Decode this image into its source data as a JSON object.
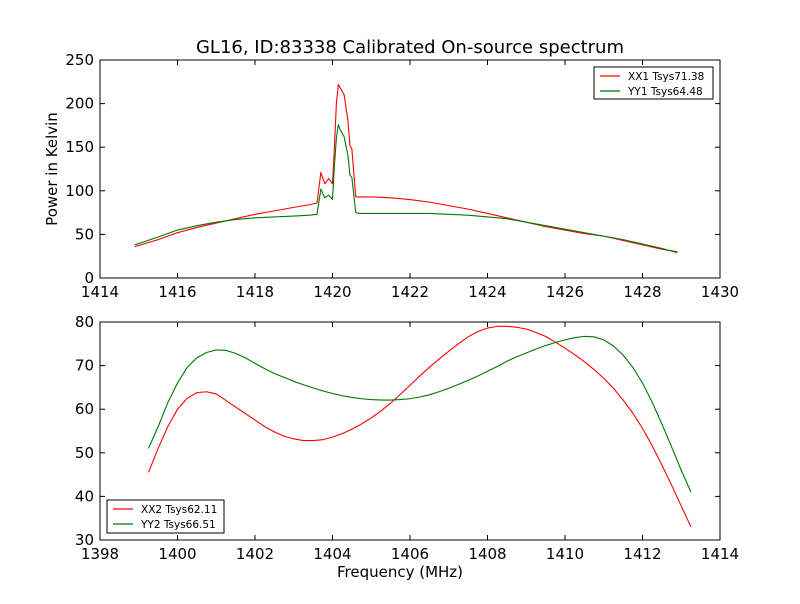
{
  "title": "GL16, ID:83338 Calibrated On-source spectrum",
  "colors": {
    "xx": "#ff0000",
    "yy": "#007700"
  },
  "chart_data": [
    {
      "type": "line",
      "ylabel": "Power in Kelvin",
      "xlabel": "",
      "xlim": [
        1414,
        1430
      ],
      "ylim": [
        0,
        250
      ],
      "xticks": [
        1414,
        1416,
        1418,
        1420,
        1422,
        1424,
        1426,
        1428,
        1430
      ],
      "yticks": [
        0,
        50,
        100,
        150,
        200,
        250
      ],
      "legend_position": "top-right",
      "grid": false,
      "series": [
        {
          "name": "XX1 Tsys71.38",
          "color": "#ff0000",
          "x": [
            1414.9,
            1415.5,
            1416,
            1416.5,
            1417,
            1417.5,
            1418,
            1418.5,
            1419,
            1419.4,
            1419.6,
            1419.7,
            1419.8,
            1419.9,
            1420.0,
            1420.05,
            1420.1,
            1420.15,
            1420.2,
            1420.3,
            1420.4,
            1420.45,
            1420.5,
            1420.55,
            1420.6,
            1420.7,
            1421,
            1421.5,
            1422,
            1422.5,
            1423,
            1423.5,
            1424,
            1424.5,
            1425,
            1425.5,
            1426,
            1426.5,
            1427,
            1427.5,
            1428,
            1428.5,
            1428.9
          ],
          "values": [
            36,
            44,
            52,
            58,
            63,
            68,
            73,
            77,
            81,
            84,
            86,
            121,
            108,
            114,
            108,
            150,
            200,
            222,
            218,
            210,
            180,
            152,
            148,
            120,
            93,
            93,
            93,
            92,
            90,
            87,
            83,
            79,
            74,
            69,
            64,
            59,
            55,
            51,
            48,
            43,
            38,
            33,
            30
          ]
        },
        {
          "name": "YY1 Tsys64.48",
          "color": "#007700",
          "x": [
            1414.9,
            1415.5,
            1416,
            1416.5,
            1417,
            1417.5,
            1418,
            1418.5,
            1419,
            1419.4,
            1419.6,
            1419.7,
            1419.8,
            1419.9,
            1420.0,
            1420.05,
            1420.1,
            1420.15,
            1420.2,
            1420.3,
            1420.4,
            1420.45,
            1420.5,
            1420.55,
            1420.6,
            1420.7,
            1421,
            1421.5,
            1422,
            1422.5,
            1423,
            1423.5,
            1424,
            1424.5,
            1425,
            1425.5,
            1426,
            1426.5,
            1427,
            1427.5,
            1428,
            1428.5,
            1428.9
          ],
          "values": [
            38,
            47,
            55,
            60,
            64,
            67,
            69,
            70,
            71,
            72,
            73,
            102,
            92,
            95,
            90,
            130,
            160,
            176,
            170,
            162,
            140,
            118,
            115,
            95,
            75,
            74,
            74,
            74,
            74,
            74,
            73,
            72,
            70,
            68,
            64,
            60,
            56,
            52,
            48,
            44,
            39,
            34,
            29
          ]
        }
      ]
    },
    {
      "type": "line",
      "ylabel": "",
      "xlabel": "Frequency (MHz)",
      "xlim": [
        1398,
        1414
      ],
      "ylim": [
        30,
        80
      ],
      "xticks": [
        1398,
        1400,
        1402,
        1404,
        1406,
        1408,
        1410,
        1412,
        1414
      ],
      "yticks": [
        30,
        40,
        50,
        60,
        70,
        80
      ],
      "legend_position": "bottom-left",
      "grid": false,
      "series": [
        {
          "name": "XX2 Tsys62.11",
          "color": "#ff0000",
          "x": [
            1399.25,
            1399.5,
            1399.75,
            1400,
            1400.25,
            1400.5,
            1400.75,
            1401,
            1401.25,
            1401.5,
            1401.75,
            1402,
            1402.25,
            1402.5,
            1402.75,
            1403,
            1403.25,
            1403.5,
            1403.75,
            1404,
            1404.25,
            1404.5,
            1404.75,
            1405,
            1405.25,
            1405.5,
            1405.75,
            1406,
            1406.25,
            1406.5,
            1406.75,
            1407,
            1407.25,
            1407.5,
            1407.75,
            1408,
            1408.25,
            1408.5,
            1408.75,
            1409,
            1409.25,
            1409.5,
            1409.75,
            1410,
            1410.25,
            1410.5,
            1410.75,
            1411,
            1411.25,
            1411.5,
            1411.75,
            1412,
            1412.25,
            1412.5,
            1412.75,
            1413,
            1413.25
          ],
          "values": [
            45.5,
            51,
            56,
            60,
            62.5,
            63.8,
            64,
            63.5,
            62,
            60.5,
            59,
            57.5,
            56,
            54.8,
            53.8,
            53.2,
            52.8,
            52.8,
            53,
            53.6,
            54.4,
            55.4,
            56.6,
            58,
            59.6,
            61.4,
            63.4,
            65.5,
            67.6,
            69.6,
            71.5,
            73.3,
            75,
            76.6,
            77.8,
            78.6,
            79,
            79,
            78.8,
            78.4,
            77.6,
            76.7,
            75.4,
            74,
            72.5,
            70.9,
            69.1,
            67.1,
            64.8,
            62.1,
            59.1,
            55.6,
            51.6,
            47.2,
            42.6,
            37.8,
            33
          ]
        },
        {
          "name": "YY2 Tsys66.51",
          "color": "#007700",
          "x": [
            1399.25,
            1399.5,
            1399.75,
            1400,
            1400.25,
            1400.5,
            1400.75,
            1401,
            1401.25,
            1401.5,
            1401.75,
            1402,
            1402.25,
            1402.5,
            1402.75,
            1403,
            1403.25,
            1403.5,
            1403.75,
            1404,
            1404.25,
            1404.5,
            1404.75,
            1405,
            1405.25,
            1405.5,
            1405.75,
            1406,
            1406.25,
            1406.5,
            1406.75,
            1407,
            1407.25,
            1407.5,
            1407.75,
            1408,
            1408.25,
            1408.5,
            1408.75,
            1409,
            1409.25,
            1409.5,
            1409.75,
            1410,
            1410.25,
            1410.5,
            1410.75,
            1411,
            1411.25,
            1411.5,
            1411.75,
            1412,
            1412.25,
            1412.5,
            1412.75,
            1413,
            1413.25
          ],
          "values": [
            51,
            56,
            61.5,
            66,
            69.6,
            71.8,
            73,
            73.6,
            73.5,
            72.8,
            71.8,
            70.5,
            69.3,
            68.2,
            67.3,
            66.4,
            65.6,
            64.9,
            64.2,
            63.6,
            63.1,
            62.7,
            62.4,
            62.2,
            62.1,
            62.1,
            62.2,
            62.4,
            62.8,
            63.3,
            64,
            64.8,
            65.7,
            66.6,
            67.6,
            68.7,
            69.8,
            71,
            72,
            72.9,
            73.8,
            74.6,
            75.3,
            75.9,
            76.4,
            76.7,
            76.6,
            75.9,
            74.5,
            72.4,
            69.6,
            66,
            61.6,
            56.6,
            51.4,
            46,
            41
          ]
        }
      ]
    }
  ]
}
